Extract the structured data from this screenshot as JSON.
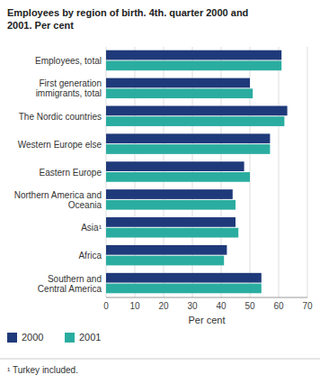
{
  "chart_data": {
    "type": "bar",
    "orientation": "horizontal",
    "title": "Employees by region of birth. 4th. quarter 2000 and\n2001. Per cent",
    "categories": [
      "Employees, total",
      "First generation\nimmigrants, total",
      "The Nordic countries",
      "Western Europe else",
      "Eastern Europe",
      "Northern America and\nOceania",
      "Asia¹",
      "Africa",
      "Southern and\nCentral America"
    ],
    "series": [
      {
        "name": "2000",
        "color": "#1f3a7a",
        "values": [
          61,
          50,
          63,
          57,
          48,
          44,
          45,
          42,
          54
        ]
      },
      {
        "name": "2001",
        "color": "#2aada0",
        "values": [
          61,
          51,
          62,
          57,
          50,
          45,
          46,
          41,
          54
        ]
      }
    ],
    "xlabel": "Per cent",
    "xlim": [
      0,
      70
    ],
    "xticks": [
      0,
      10,
      20,
      30,
      40,
      50,
      60,
      70
    ],
    "grid": true,
    "legend": "bottom",
    "footnote": "¹  Turkey included."
  }
}
